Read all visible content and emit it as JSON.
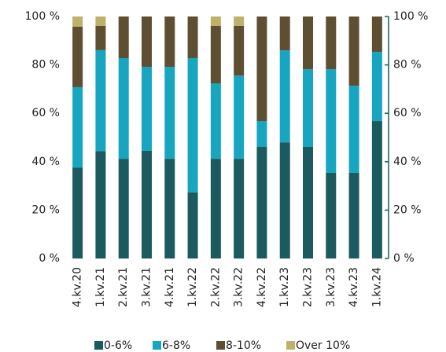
{
  "chart_data": {
    "type": "stacked_bar",
    "categories": [
      "4.kv.20",
      "1.kv.21",
      "2.kv.21",
      "3.kv.21",
      "4.kv.21",
      "1.kv.22",
      "2.kv.22",
      "3.kv.22",
      "4.kv.22",
      "1.kv.23",
      "2.kv.23",
      "3.kv.23",
      "4.kv.23",
      "1.kv.24"
    ],
    "series": [
      {
        "name": "0-6%",
        "color": "#1b5a5e",
        "values": [
          37.5,
          44.4,
          41.2,
          44.5,
          41.2,
          27.3,
          41.2,
          41.2,
          46.1,
          48,
          46.1,
          35.4,
          35.4,
          56.8
        ]
      },
      {
        "name": "6-8%",
        "color": "#17a5c0",
        "values": [
          33.3,
          41.7,
          41.6,
          34.7,
          38,
          55.5,
          31.2,
          34.4,
          10.7,
          38,
          32.1,
          42.8,
          36,
          28.6
        ]
      },
      {
        "name": "8-10%",
        "color": "#5e4f32",
        "values": [
          25,
          10,
          17.2,
          20.8,
          20.8,
          17.2,
          23.7,
          20.5,
          43.2,
          14,
          21.8,
          21.8,
          28.6,
          14.6
        ]
      },
      {
        "name": "Over 10%",
        "color": "#bfb06a",
        "values": [
          4.2,
          3.9,
          0,
          0,
          0,
          0,
          3.9,
          3.9,
          0,
          0,
          0,
          0,
          0,
          0
        ]
      }
    ],
    "ylim": [
      0,
      100
    ],
    "yticks": [
      {
        "value": 0,
        "label": "0 %"
      },
      {
        "value": 20,
        "label": "20 %"
      },
      {
        "value": 40,
        "label": "40 %"
      },
      {
        "value": 60,
        "label": "60 %"
      },
      {
        "value": 80,
        "label": "80 %"
      },
      {
        "value": 100,
        "label": "100 %"
      }
    ],
    "y2lim": [
      0,
      100
    ],
    "y2ticks": [
      {
        "value": 0,
        "label": "0 %"
      },
      {
        "value": 20,
        "label": "20 %"
      },
      {
        "value": 40,
        "label": "40 %"
      },
      {
        "value": 60,
        "label": "60 %"
      },
      {
        "value": 80,
        "label": "80 %"
      },
      {
        "value": 100,
        "label": "100 %"
      }
    ]
  }
}
